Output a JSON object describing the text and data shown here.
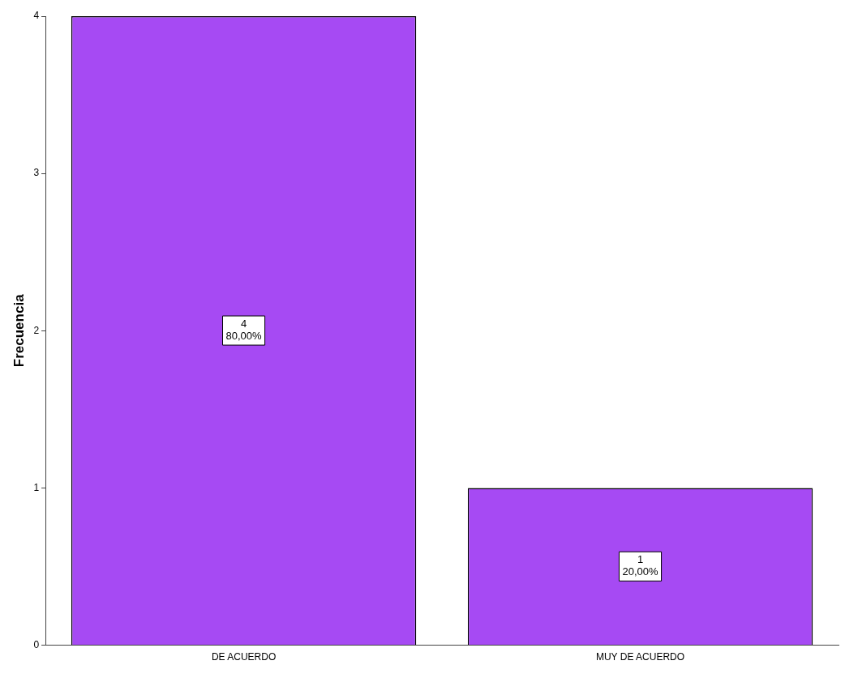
{
  "chart_data": {
    "type": "bar",
    "ylabel": "Frecuencia",
    "categories": [
      "DE ACUERDO",
      "MUY DE ACUERDO"
    ],
    "values": [
      4,
      1
    ],
    "color": "#a64af3",
    "value_labels": [
      "4\n80,00%",
      "1\n20,00%"
    ],
    "ylim": [
      0,
      4
    ],
    "yticks": [
      0,
      1,
      2,
      3,
      4
    ],
    "grid": false,
    "legend": false
  }
}
